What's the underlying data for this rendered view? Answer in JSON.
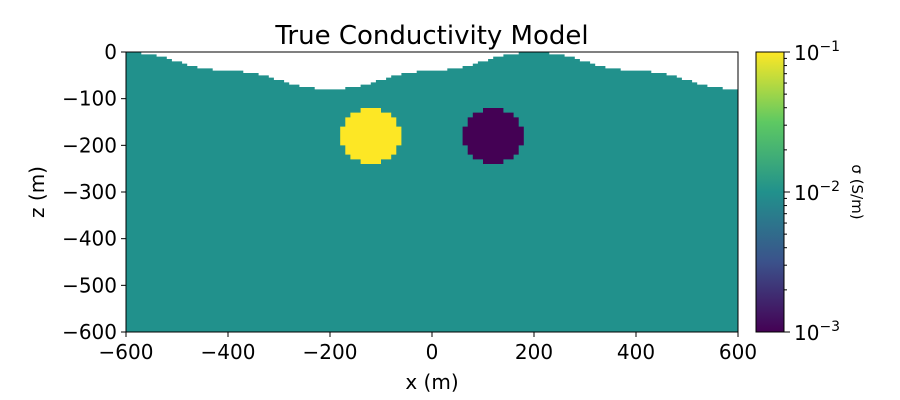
{
  "chart_data": {
    "type": "heatmap",
    "title": "True Conductivity Model",
    "xlabel": "x (m)",
    "ylabel": "z (m)",
    "xlim": [
      -600,
      600
    ],
    "ylim": [
      -600,
      0
    ],
    "x_ticks": [
      {
        "value": -600,
        "label": "−600"
      },
      {
        "value": -400,
        "label": "−400"
      },
      {
        "value": -200,
        "label": "−200"
      },
      {
        "value": 0,
        "label": "0"
      },
      {
        "value": 200,
        "label": "200"
      },
      {
        "value": 400,
        "label": "400"
      },
      {
        "value": 600,
        "label": "600"
      }
    ],
    "y_ticks": [
      {
        "value": 0,
        "label": "0"
      },
      {
        "value": -100,
        "label": "−100"
      },
      {
        "value": -200,
        "label": "−200"
      },
      {
        "value": -300,
        "label": "−300"
      },
      {
        "value": -400,
        "label": "−400"
      },
      {
        "value": -500,
        "label": "−500"
      },
      {
        "value": -600,
        "label": "−600"
      }
    ],
    "colormap": "viridis",
    "colormap_stops": [
      "#440154",
      "#3b528b",
      "#21918c",
      "#5ec962",
      "#fde725"
    ],
    "background_sigma": 0.01,
    "background_color": "#21918c",
    "topography": [
      {
        "x": -600,
        "z": 0
      },
      {
        "x": -400,
        "z": -40
      },
      {
        "x": -200,
        "z": -80
      },
      {
        "x": 0,
        "z": -40
      },
      {
        "x": 200,
        "z": 0
      },
      {
        "x": 400,
        "z": -40
      },
      {
        "x": 600,
        "z": -80
      }
    ],
    "anomalies": [
      {
        "name": "conductor",
        "center_x": -120,
        "center_z": -180,
        "radius": 60,
        "sigma": 0.1,
        "color": "#fde725"
      },
      {
        "name": "resistor",
        "center_x": 120,
        "center_z": -180,
        "radius": 60,
        "sigma": 0.001,
        "color": "#440154"
      }
    ],
    "colorbar": {
      "label": "σ (S/m)",
      "scale": "log",
      "min": 0.001,
      "max": 0.1,
      "ticks": [
        {
          "value": 0.1,
          "base": "10",
          "exp": "−1"
        },
        {
          "value": 0.01,
          "base": "10",
          "exp": "−2"
        },
        {
          "value": 0.001,
          "base": "10",
          "exp": "−3"
        }
      ]
    }
  }
}
